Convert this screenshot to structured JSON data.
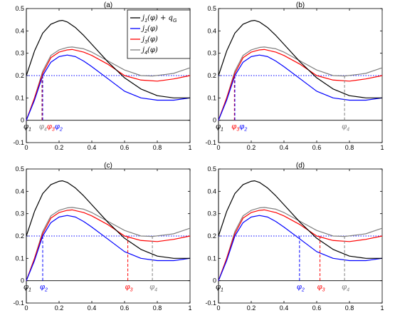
{
  "chart_data": {
    "type": "line",
    "x_range": [
      0,
      1
    ],
    "y_range": [
      -0.1,
      0.5
    ],
    "x_ticks": [
      "0",
      "0.2",
      "0.4",
      "0.6",
      "0.8",
      "1"
    ],
    "y_ticks": [
      "-0.1",
      "0",
      "0.1",
      "0.2",
      "0.3",
      "0.4",
      "0.5"
    ],
    "grid": false,
    "legend_position": "top-right (panel a)",
    "reference_line": {
      "y": 0.2,
      "style": "dotted",
      "color": "#0000ff"
    },
    "series": [
      {
        "name": "j1(φ) + qG",
        "legend_main": "j",
        "legend_sub": "1",
        "legend_rest": "(φ) + q",
        "legend_rest_sub": "G",
        "color": "#000000",
        "x": [
          0,
          0.05,
          0.1,
          0.15,
          0.2,
          0.22,
          0.25,
          0.3,
          0.35,
          0.4,
          0.5,
          0.6,
          0.7,
          0.8,
          0.9,
          1.0
        ],
        "y": [
          0.2,
          0.31,
          0.39,
          0.43,
          0.445,
          0.447,
          0.44,
          0.415,
          0.38,
          0.34,
          0.26,
          0.19,
          0.14,
          0.11,
          0.1,
          0.1
        ]
      },
      {
        "name": "j2(φ)",
        "legend_main": "j",
        "legend_sub": "2",
        "legend_rest": "(φ)",
        "color": "#0000ff",
        "x": [
          0,
          0.05,
          0.1,
          0.15,
          0.2,
          0.25,
          0.3,
          0.35,
          0.4,
          0.5,
          0.6,
          0.7,
          0.8,
          0.9,
          1.0
        ],
        "y": [
          0,
          0.09,
          0.2,
          0.26,
          0.285,
          0.292,
          0.285,
          0.265,
          0.24,
          0.185,
          0.13,
          0.1,
          0.09,
          0.09,
          0.1
        ]
      },
      {
        "name": "j3(φ)",
        "legend_main": "j",
        "legend_sub": "3",
        "legend_rest": "(φ)",
        "color": "#ff0000",
        "x": [
          0,
          0.05,
          0.1,
          0.15,
          0.2,
          0.25,
          0.28,
          0.35,
          0.4,
          0.5,
          0.6,
          0.7,
          0.8,
          0.9,
          1.0
        ],
        "y": [
          0,
          0.1,
          0.21,
          0.28,
          0.305,
          0.315,
          0.317,
          0.305,
          0.29,
          0.25,
          0.2,
          0.18,
          0.175,
          0.185,
          0.2
        ]
      },
      {
        "name": "j4(φ)",
        "legend_main": "j",
        "legend_sub": "4",
        "legend_rest": "(φ)",
        "color": "#808080",
        "x": [
          0,
          0.05,
          0.1,
          0.15,
          0.2,
          0.25,
          0.28,
          0.35,
          0.4,
          0.5,
          0.6,
          0.7,
          0.77,
          0.85,
          0.9,
          1.0
        ],
        "y": [
          0,
          0.1,
          0.22,
          0.29,
          0.315,
          0.326,
          0.328,
          0.32,
          0.305,
          0.265,
          0.225,
          0.2,
          0.198,
          0.205,
          0.21,
          0.235
        ]
      }
    ],
    "panels": [
      {
        "title": "(a)",
        "show_legend": true,
        "markers": [
          {
            "phi": "φ",
            "sub": "1",
            "x": 0.0,
            "color": "#000000",
            "row": 0
          },
          {
            "phi": "φ",
            "sub": "4",
            "x": 0.095,
            "color": "#808080",
            "row": 0
          },
          {
            "phi": "φ",
            "sub": "3",
            "x": 0.097,
            "color": "#ff0000",
            "row": 0
          },
          {
            "phi": "φ",
            "sub": "2",
            "x": 0.1,
            "color": "#0000ff",
            "row": 0
          }
        ]
      },
      {
        "title": "(b)",
        "show_legend": false,
        "markers": [
          {
            "phi": "φ",
            "sub": "1",
            "x": 0.0,
            "color": "#000000",
            "row": 0
          },
          {
            "phi": "φ",
            "sub": "3",
            "x": 0.097,
            "color": "#ff0000",
            "row": 0
          },
          {
            "phi": "φ",
            "sub": "2",
            "x": 0.1,
            "color": "#0000ff",
            "row": 0
          },
          {
            "phi": "φ",
            "sub": "4",
            "x": 0.77,
            "color": "#808080",
            "row": 0
          }
        ]
      },
      {
        "title": "(c)",
        "show_legend": false,
        "markers": [
          {
            "phi": "φ",
            "sub": "1",
            "x": 0.0,
            "color": "#000000",
            "row": 0
          },
          {
            "phi": "φ",
            "sub": "2",
            "x": 0.1,
            "color": "#0000ff",
            "row": 0
          },
          {
            "phi": "φ",
            "sub": "3",
            "x": 0.62,
            "color": "#ff0000",
            "row": 0
          },
          {
            "phi": "φ",
            "sub": "4",
            "x": 0.77,
            "color": "#808080",
            "row": 0
          }
        ]
      },
      {
        "title": "(d)",
        "show_legend": false,
        "markers": [
          {
            "phi": "φ",
            "sub": "1",
            "x": 0.0,
            "color": "#000000",
            "row": 0
          },
          {
            "phi": "φ",
            "sub": "2",
            "x": 0.495,
            "color": "#0000ff",
            "row": 0
          },
          {
            "phi": "φ",
            "sub": "3",
            "x": 0.62,
            "color": "#ff0000",
            "row": 0
          },
          {
            "phi": "φ",
            "sub": "4",
            "x": 0.77,
            "color": "#808080",
            "row": 0
          }
        ]
      }
    ]
  }
}
